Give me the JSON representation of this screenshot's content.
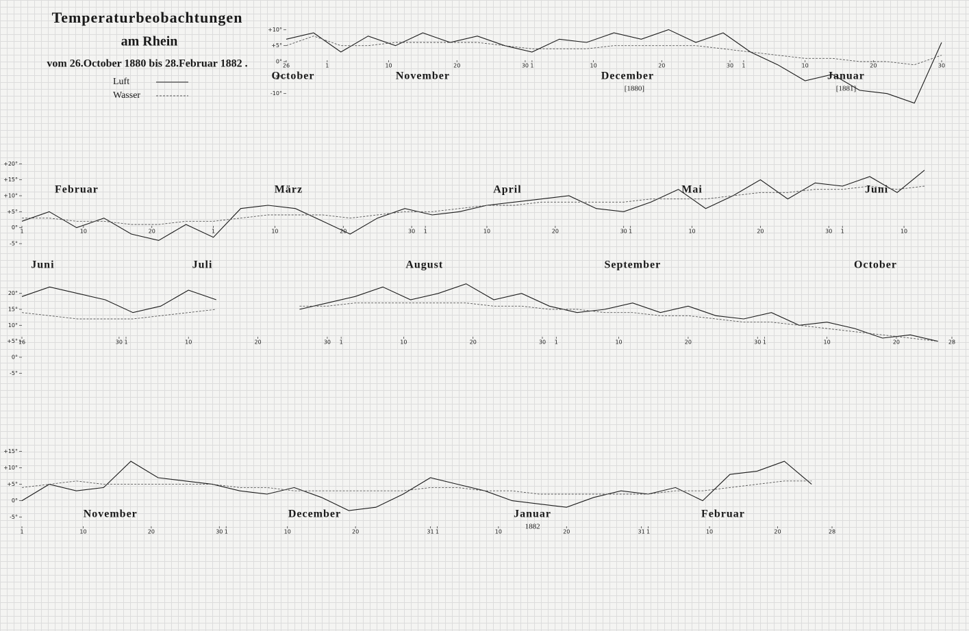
{
  "header": {
    "title": "Temperaturbeobachtungen",
    "subtitle": "am Rhein",
    "period": "vom 26.October 1880 bis 28.Februar 1882 ."
  },
  "chart_data": [
    {
      "type": "line",
      "x": [
        0,
        4,
        8,
        12,
        16,
        20,
        24,
        28,
        32,
        36,
        40,
        44,
        48,
        52,
        56,
        60,
        64,
        68,
        72,
        76,
        80,
        84,
        88,
        92,
        96
      ],
      "series": [
        {
          "name": "Luft",
          "color": "#1a1a1a",
          "style": "solid",
          "values": [
            7,
            9,
            3,
            8,
            5,
            9,
            6,
            8,
            5,
            3,
            7,
            6,
            9,
            7,
            10,
            6,
            9,
            3,
            -1,
            -6,
            -4,
            -9,
            -10,
            -13,
            6
          ]
        },
        {
          "name": "Wasser",
          "color": "#555555",
          "style": "dashed",
          "values": [
            5,
            8,
            5,
            5,
            6,
            6,
            6,
            6,
            5,
            4,
            4,
            4,
            5,
            5,
            5,
            5,
            4,
            3,
            2,
            1,
            1,
            0,
            0,
            -1,
            2
          ]
        }
      ],
      "xlim": [
        0,
        97
      ],
      "xticks": [
        {
          "value": 0,
          "label": "26"
        },
        {
          "value": 6,
          "label": "1"
        },
        {
          "value": 15,
          "label": "10"
        },
        {
          "value": 25,
          "label": "20"
        },
        {
          "value": 35,
          "label": "30"
        },
        {
          "value": 36,
          "label": "1"
        },
        {
          "value": 45,
          "label": "10"
        },
        {
          "value": 55,
          "label": "20"
        },
        {
          "value": 65,
          "label": "30"
        },
        {
          "value": 67,
          "label": "1"
        },
        {
          "value": 76,
          "label": "10"
        },
        {
          "value": 86,
          "label": "20"
        },
        {
          "value": 96,
          "label": "30"
        }
      ],
      "ylim": [
        -15,
        15
      ],
      "yticks": [
        {
          "value": -10,
          "label": "-10°"
        },
        {
          "value": -5,
          "label": "-5°"
        },
        {
          "value": 0,
          "label": "0°"
        },
        {
          "value": 5,
          "label": "+5°"
        },
        {
          "value": 10,
          "label": "+10°"
        }
      ],
      "annotations": [
        {
          "text": "October",
          "x": 1
        },
        {
          "text": "November",
          "x": 20
        },
        {
          "text": "December",
          "x": 50
        },
        {
          "text": "[1880]",
          "x": 51
        },
        {
          "text": "Januar",
          "x": 82
        },
        {
          "text": "[1881]",
          "x": 82
        }
      ]
    },
    {
      "type": "line",
      "x": [
        0,
        4,
        8,
        12,
        16,
        20,
        24,
        28,
        32,
        36,
        40,
        44,
        48,
        52,
        56,
        60,
        64,
        68,
        72,
        76,
        80,
        84,
        88,
        92,
        96,
        100,
        104,
        108,
        112,
        116,
        120,
        124,
        128,
        132
      ],
      "series": [
        {
          "color": "#1a1a1a",
          "style": "solid",
          "values": [
            2,
            5,
            0,
            3,
            -2,
            -4,
            1,
            -3,
            6,
            7,
            6,
            2,
            -2,
            3,
            6,
            4,
            5,
            7,
            8,
            9,
            10,
            6,
            5,
            8,
            12,
            6,
            10,
            15,
            9,
            14,
            13,
            16,
            11,
            18
          ]
        },
        {
          "color": "#555555",
          "style": "dashed",
          "values": [
            3,
            3,
            2,
            2,
            1,
            1,
            2,
            2,
            3,
            4,
            4,
            4,
            3,
            4,
            5,
            5,
            6,
            7,
            7,
            8,
            8,
            8,
            8,
            9,
            9,
            9,
            10,
            11,
            11,
            12,
            12,
            13,
            12,
            13
          ]
        }
      ],
      "xlim": [
        0,
        134
      ],
      "xticks": [
        {
          "value": 0,
          "label": "1"
        },
        {
          "value": 9,
          "label": "10"
        },
        {
          "value": 19,
          "label": "20"
        },
        {
          "value": 28,
          "label": "1"
        },
        {
          "value": 37,
          "label": "10"
        },
        {
          "value": 47,
          "label": "20"
        },
        {
          "value": 57,
          "label": "30"
        },
        {
          "value": 59,
          "label": "1"
        },
        {
          "value": 68,
          "label": "10"
        },
        {
          "value": 78,
          "label": "20"
        },
        {
          "value": 88,
          "label": "30"
        },
        {
          "value": 89,
          "label": "1"
        },
        {
          "value": 98,
          "label": "10"
        },
        {
          "value": 108,
          "label": "20"
        },
        {
          "value": 118,
          "label": "30"
        },
        {
          "value": 120,
          "label": "1"
        },
        {
          "value": 129,
          "label": "10"
        }
      ],
      "ylim": [
        -8,
        22
      ],
      "yticks": [
        {
          "value": -5,
          "label": "-5°"
        },
        {
          "value": 0,
          "label": "0°"
        },
        {
          "value": 5,
          "label": "+5°"
        },
        {
          "value": 10,
          "label": "+10°"
        },
        {
          "value": 15,
          "label": "+15°"
        },
        {
          "value": 20,
          "label": "+20°"
        }
      ],
      "annotations": [
        {
          "text": "Februar",
          "x": 8
        },
        {
          "text": "März",
          "x": 39
        },
        {
          "text": "April",
          "x": 71
        },
        {
          "text": "Mai",
          "x": 98
        },
        {
          "text": "Juni",
          "x": 125
        }
      ]
    },
    {
      "type": "line",
      "x": [
        0,
        4,
        8,
        12,
        16,
        20,
        24,
        28,
        32,
        36,
        40,
        44,
        48,
        52,
        56,
        60,
        64,
        68,
        72,
        76,
        80,
        84,
        88,
        92,
        96,
        100,
        104,
        108,
        112,
        116,
        120,
        124,
        128,
        132
      ],
      "series": [
        {
          "color": "#1a1a1a",
          "style": "solid",
          "values": [
            19,
            22,
            20,
            18,
            14,
            16,
            21,
            18,
            null,
            null,
            15,
            17,
            19,
            22,
            18,
            20,
            23,
            18,
            20,
            16,
            14,
            15,
            17,
            14,
            16,
            13,
            12,
            14,
            10,
            11,
            9,
            6,
            7,
            5
          ]
        },
        {
          "color": "#555555",
          "style": "dashed",
          "values": [
            14,
            13,
            12,
            12,
            12,
            13,
            14,
            15,
            null,
            null,
            16,
            16,
            17,
            17,
            17,
            17,
            17,
            16,
            16,
            15,
            15,
            14,
            14,
            13,
            13,
            12,
            11,
            11,
            10,
            9,
            8,
            7,
            6,
            5
          ]
        }
      ],
      "xlim": [
        0,
        134
      ],
      "xticks": [
        {
          "value": 0,
          "label": "16"
        },
        {
          "value": 14,
          "label": "30"
        },
        {
          "value": 15,
          "label": "1"
        },
        {
          "value": 24,
          "label": "10"
        },
        {
          "value": 34,
          "label": "20"
        },
        {
          "value": 44,
          "label": "30"
        },
        {
          "value": 46,
          "label": "1"
        },
        {
          "value": 55,
          "label": "10"
        },
        {
          "value": 65,
          "label": "20"
        },
        {
          "value": 75,
          "label": "30"
        },
        {
          "value": 77,
          "label": "1"
        },
        {
          "value": 86,
          "label": "10"
        },
        {
          "value": 96,
          "label": "20"
        },
        {
          "value": 106,
          "label": "30"
        },
        {
          "value": 107,
          "label": "1"
        },
        {
          "value": 116,
          "label": "10"
        },
        {
          "value": 126,
          "label": "20"
        },
        {
          "value": 134,
          "label": "28"
        }
      ],
      "ylim": [
        -6,
        24
      ],
      "yticks": [
        {
          "value": -5,
          "label": "-5°"
        },
        {
          "value": 0,
          "label": "0°"
        },
        {
          "value": 5,
          "label": "+5°"
        },
        {
          "value": 10,
          "label": "10°"
        },
        {
          "value": 15,
          "label": "15°"
        },
        {
          "value": 20,
          "label": "20°"
        }
      ],
      "annotations": [
        {
          "text": "Juni",
          "x": 3
        },
        {
          "text": "Juli",
          "x": 26
        },
        {
          "text": "August",
          "x": 58
        },
        {
          "text": "September",
          "x": 88
        },
        {
          "text": "October",
          "x": 123
        }
      ]
    },
    {
      "type": "line",
      "x": [
        0,
        4,
        8,
        12,
        16,
        20,
        24,
        28,
        32,
        36,
        40,
        44,
        48,
        52,
        56,
        60,
        64,
        68,
        72,
        76,
        80,
        84,
        88,
        92,
        96,
        100,
        104,
        108,
        112,
        116
      ],
      "series": [
        {
          "color": "#1a1a1a",
          "style": "solid",
          "values": [
            0,
            5,
            3,
            4,
            12,
            7,
            6,
            5,
            3,
            2,
            4,
            1,
            -3,
            -2,
            2,
            7,
            5,
            3,
            0,
            -1,
            -2,
            1,
            3,
            2,
            4,
            0,
            8,
            9,
            12,
            5
          ]
        },
        {
          "color": "#555555",
          "style": "dashed",
          "values": [
            4,
            5,
            6,
            5,
            5,
            5,
            5,
            5,
            4,
            4,
            3,
            3,
            3,
            3,
            3,
            4,
            4,
            3,
            3,
            2,
            2,
            2,
            2,
            2,
            3,
            3,
            4,
            5,
            6,
            6
          ]
        }
      ],
      "xlim": [
        0,
        119
      ],
      "xticks": [
        {
          "value": 0,
          "label": "1"
        },
        {
          "value": 9,
          "label": "10"
        },
        {
          "value": 19,
          "label": "20"
        },
        {
          "value": 29,
          "label": "30"
        },
        {
          "value": 30,
          "label": "1"
        },
        {
          "value": 39,
          "label": "10"
        },
        {
          "value": 49,
          "label": "20"
        },
        {
          "value": 60,
          "label": "31"
        },
        {
          "value": 61,
          "label": "1"
        },
        {
          "value": 70,
          "label": "10"
        },
        {
          "value": 80,
          "label": "20"
        },
        {
          "value": 91,
          "label": "31"
        },
        {
          "value": 92,
          "label": "1"
        },
        {
          "value": 101,
          "label": "10"
        },
        {
          "value": 111,
          "label": "20"
        },
        {
          "value": 119,
          "label": "28"
        }
      ],
      "ylim": [
        -8,
        17
      ],
      "yticks": [
        {
          "value": -5,
          "label": "-5°"
        },
        {
          "value": 0,
          "label": "0°"
        },
        {
          "value": 5,
          "label": "+5°"
        },
        {
          "value": 10,
          "label": "+10°"
        },
        {
          "value": 15,
          "label": "+15°"
        }
      ],
      "annotations": [
        {
          "text": "November",
          "x": 13
        },
        {
          "text": "December",
          "x": 43
        },
        {
          "text": "Januar",
          "x": 75
        },
        {
          "text": "1882",
          "x": 75
        },
        {
          "text": "Februar",
          "x": 103
        }
      ]
    }
  ]
}
